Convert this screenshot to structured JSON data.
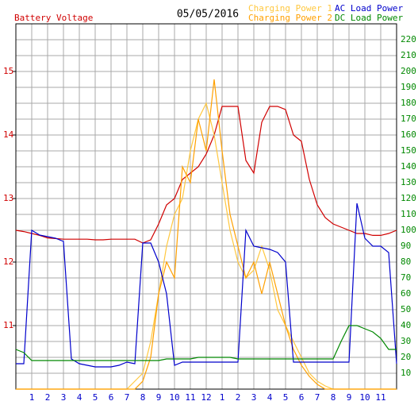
{
  "chart_data": {
    "type": "line",
    "title": "05/05/2016",
    "x": [
      0,
      0.5,
      1,
      1.5,
      2,
      2.5,
      3,
      3.5,
      4,
      4.5,
      5,
      5.5,
      6,
      6.5,
      7,
      7.5,
      8,
      8.5,
      9,
      9.5,
      10,
      10.5,
      11,
      11.5,
      12,
      12.5,
      13,
      13.5,
      14,
      14.5,
      15,
      15.5,
      16,
      16.5,
      17,
      17.5,
      18,
      18.5,
      19,
      19.5,
      20,
      20.5,
      21,
      21.5,
      22,
      22.5,
      23,
      23.5,
      24
    ],
    "xlim": [
      0,
      24
    ],
    "xticks": [
      1,
      2,
      3,
      4,
      5,
      6,
      7,
      8,
      9,
      10,
      11,
      12,
      {
        "value": 13,
        "label": "1"
      },
      {
        "value": 14,
        "label": "2"
      },
      {
        "value": 15,
        "label": "3"
      },
      {
        "value": 16,
        "label": "4"
      },
      {
        "value": 17,
        "label": "5"
      },
      {
        "value": 18,
        "label": "6"
      },
      {
        "value": 19,
        "label": "7"
      },
      {
        "value": 20,
        "label": "8"
      },
      {
        "value": 21,
        "label": "9"
      },
      {
        "value": 22,
        "label": "10"
      },
      {
        "value": 23,
        "label": "11"
      }
    ],
    "ylim": [
      10,
      15.75
    ],
    "yticks": [
      11,
      12,
      13,
      14,
      15
    ],
    "y2lim": [
      0,
      230
    ],
    "y2ticks": [
      10,
      20,
      30,
      40,
      50,
      60,
      70,
      80,
      90,
      100,
      110,
      120,
      130,
      140,
      150,
      160,
      170,
      180,
      190,
      200,
      210,
      220
    ],
    "grid": true,
    "series": [
      {
        "name": "Battery Voltage",
        "color": "#d00000",
        "axis": "y",
        "values": [
          12.5,
          12.48,
          12.45,
          12.42,
          12.38,
          12.37,
          12.36,
          12.36,
          12.36,
          12.36,
          12.35,
          12.35,
          12.36,
          12.36,
          12.36,
          12.36,
          12.3,
          12.35,
          12.6,
          12.9,
          13.0,
          13.3,
          13.4,
          13.5,
          13.7,
          14.0,
          14.45,
          14.45,
          14.45,
          13.6,
          13.4,
          14.2,
          14.45,
          14.45,
          14.4,
          14.0,
          13.9,
          13.3,
          12.9,
          12.7,
          12.6,
          12.55,
          12.5,
          12.45,
          12.45,
          12.42,
          12.42,
          12.45,
          12.5
        ]
      },
      {
        "name": "Charging Power 1",
        "color": "#ffc840",
        "axis": "y2",
        "values": [
          0,
          0,
          0,
          0,
          0,
          0,
          0,
          0,
          0,
          0,
          0,
          0,
          0,
          0,
          0,
          5,
          10,
          30,
          60,
          90,
          110,
          120,
          150,
          170,
          180,
          160,
          130,
          100,
          80,
          70,
          75,
          90,
          75,
          50,
          40,
          30,
          20,
          10,
          5,
          2,
          0,
          0,
          0,
          0,
          0,
          0,
          0,
          0,
          0
        ]
      },
      {
        "name": "Charging Power 2",
        "color": "#ffa000",
        "axis": "y2",
        "values": [
          0,
          0,
          0,
          0,
          0,
          0,
          0,
          0,
          0,
          0,
          0,
          0,
          0,
          0,
          0,
          0,
          5,
          20,
          60,
          80,
          70,
          140,
          130,
          170,
          150,
          195,
          150,
          110,
          90,
          70,
          80,
          60,
          80,
          60,
          40,
          25,
          15,
          8,
          3,
          0,
          0,
          0,
          0,
          0,
          0,
          0,
          0,
          0,
          0
        ]
      },
      {
        "name": "AC Load Power",
        "color": "#0000cc",
        "axis": "y2",
        "values": [
          16,
          16,
          100,
          97,
          96,
          95,
          93,
          19,
          16,
          15,
          14,
          14,
          14,
          15,
          17,
          16,
          92,
          92,
          80,
          60,
          15,
          17,
          17,
          17,
          17,
          17,
          17,
          17,
          17,
          100,
          90,
          89,
          88,
          86,
          80,
          17,
          17,
          17,
          17,
          17,
          17,
          17,
          17,
          117,
          95,
          90,
          90,
          86,
          16
        ]
      },
      {
        "name": "DC Load Power",
        "color": "#008800",
        "axis": "y2",
        "values": [
          25,
          23,
          18,
          18,
          18,
          18,
          18,
          18,
          18,
          18,
          18,
          18,
          18,
          18,
          18,
          18,
          18,
          18,
          18,
          19,
          19,
          19,
          19,
          20,
          20,
          20,
          20,
          20,
          19,
          19,
          19,
          19,
          19,
          19,
          19,
          19,
          19,
          19,
          19,
          19,
          19,
          30,
          40,
          40,
          38,
          36,
          32,
          25,
          25
        ]
      }
    ]
  }
}
